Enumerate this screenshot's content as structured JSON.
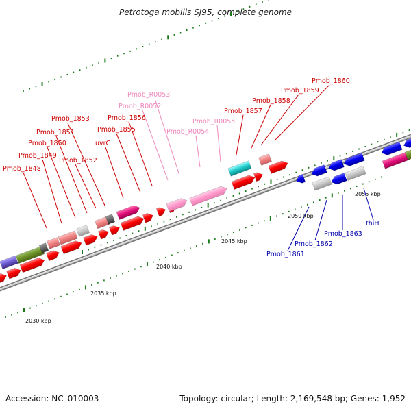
{
  "title": "Petrotoga mobilis SJ95, complete genome",
  "footer": {
    "accession": "Accession: NC_010003",
    "summary": "Topology: circular; Length: 2,169,548 bp; Genes: 1,952"
  },
  "scale": {
    "ticks": [
      {
        "label": "2030 kbp"
      },
      {
        "label": "2035 kbp"
      },
      {
        "label": "2040 kbp"
      },
      {
        "label": "2045 kbp"
      },
      {
        "label": "2050 kbp"
      },
      {
        "label": "2055 kbp"
      }
    ]
  },
  "genes": {
    "forward": [
      {
        "name": "Pmob_1848"
      },
      {
        "name": "Pmob_1849"
      },
      {
        "name": "Pmob_1850"
      },
      {
        "name": "Pmob_1851"
      },
      {
        "name": "Pmob_1852"
      },
      {
        "name": "Pmob_1853"
      },
      {
        "name": "uvrC"
      },
      {
        "name": "Pmob_1855"
      },
      {
        "name": "Pmob_1856"
      },
      {
        "name": "Pmob_R0052"
      },
      {
        "name": "Pmob_R0053"
      },
      {
        "name": "Pmob_R0054"
      },
      {
        "name": "Pmob_R0055"
      },
      {
        "name": "Pmob_1857"
      },
      {
        "name": "Pmob_1858"
      },
      {
        "name": "Pmob_1859"
      },
      {
        "name": "Pmob_1860"
      }
    ],
    "reverse": [
      {
        "name": "Pmob_1861"
      },
      {
        "name": "Pmob_1862"
      },
      {
        "name": "Pmob_1863"
      },
      {
        "name": "thiH"
      }
    ]
  },
  "colors": {
    "red_gene": "#ff0000",
    "rna_gene": "#ff99cc",
    "blue_gene": "#0000ee",
    "red_label": "#cc0000",
    "pink_label": "#ee88bb",
    "blue_label": "#0000aa",
    "tick_green": "#1a7a1a"
  }
}
